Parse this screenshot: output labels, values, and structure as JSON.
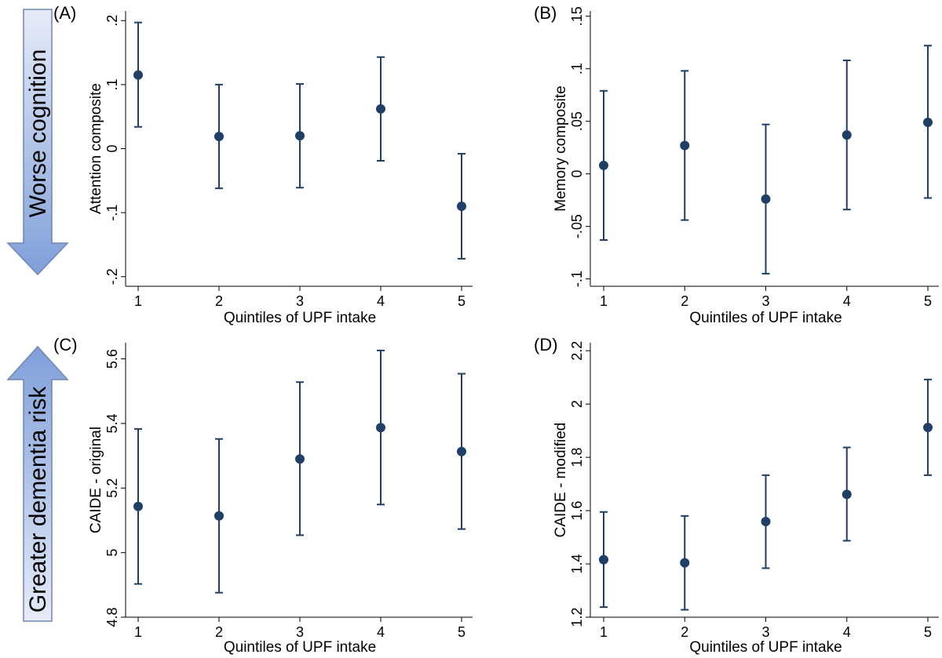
{
  "arrows": [
    {
      "label": "Worse cognition",
      "direction": "down",
      "fill_top": "#e6ecf8",
      "fill_bottom": "#7f9fd9"
    },
    {
      "label": "Greater dementia risk",
      "direction": "up",
      "fill_top": "#7f9fd9",
      "fill_bottom": "#e6ecf8"
    }
  ],
  "colors": {
    "marker": "#1f3f66",
    "errorbar": "#1f3f66",
    "axis": "#000000",
    "background": "#ffffff"
  },
  "chart_data": [
    {
      "type": "scatter",
      "panel_label": "(A)",
      "xlabel": "Quintiles of UPF intake",
      "ylabel": "Attention composite",
      "x": [
        1,
        2,
        3,
        4,
        5
      ],
      "y": [
        0.115,
        0.019,
        0.02,
        0.062,
        -0.09
      ],
      "ci_low": [
        0.034,
        -0.062,
        -0.061,
        -0.019,
        -0.172
      ],
      "ci_high": [
        0.197,
        0.1,
        0.101,
        0.143,
        -0.008
      ],
      "xticks": [
        1,
        2,
        3,
        4,
        5
      ],
      "yticks": [
        -0.2,
        -0.1,
        0,
        0.1,
        0.2
      ],
      "ytick_labels": [
        "-.2",
        "-.1",
        "0",
        ".1",
        ".2"
      ],
      "ylim": [
        -0.215,
        0.215
      ],
      "grid": false,
      "error_bars": true
    },
    {
      "type": "scatter",
      "panel_label": "(B)",
      "xlabel": "Quintiles of UPF intake",
      "ylabel": "Memory composite",
      "x": [
        1,
        2,
        3,
        4,
        5
      ],
      "y": [
        0.008,
        0.027,
        -0.024,
        0.037,
        0.049
      ],
      "ci_low": [
        -0.063,
        -0.044,
        -0.095,
        -0.034,
        -0.023
      ],
      "ci_high": [
        0.079,
        0.098,
        0.047,
        0.108,
        0.122
      ],
      "xticks": [
        1,
        2,
        3,
        4,
        5
      ],
      "yticks": [
        -0.1,
        -0.05,
        0,
        0.05,
        0.1,
        0.15
      ],
      "ytick_labels": [
        "-.1",
        "-.05",
        "0",
        ".05",
        ".1",
        ".15"
      ],
      "ylim": [
        -0.107,
        0.155
      ],
      "grid": false,
      "error_bars": true
    },
    {
      "type": "scatter",
      "panel_label": "(C)",
      "xlabel": "Quintiles of UPF intake",
      "ylabel": "CAIDE - original",
      "x": [
        1,
        2,
        3,
        4,
        5
      ],
      "y": [
        5.143,
        5.114,
        5.29,
        5.387,
        5.313
      ],
      "ci_low": [
        4.903,
        4.876,
        5.054,
        5.149,
        5.073
      ],
      "ci_high": [
        5.383,
        5.352,
        5.528,
        5.626,
        5.554
      ],
      "xticks": [
        1,
        2,
        3,
        4,
        5
      ],
      "yticks": [
        4.8,
        5,
        5.2,
        5.4,
        5.6
      ],
      "ytick_labels": [
        "4.8",
        "5",
        "5.2",
        "5.4",
        "5.6"
      ],
      "ylim": [
        4.8,
        5.65
      ],
      "grid": false,
      "error_bars": true
    },
    {
      "type": "scatter",
      "panel_label": "(D)",
      "xlabel": "Quintiles of UPF intake",
      "ylabel": "CAIDE - modified",
      "x": [
        1,
        2,
        3,
        4,
        5
      ],
      "y": [
        1.416,
        1.404,
        1.559,
        1.661,
        1.912
      ],
      "ci_low": [
        1.238,
        1.228,
        1.384,
        1.487,
        1.733
      ],
      "ci_high": [
        1.595,
        1.58,
        1.733,
        1.837,
        2.092
      ],
      "xticks": [
        1,
        2,
        3,
        4,
        5
      ],
      "yticks": [
        1.2,
        1.4,
        1.6,
        1.8,
        2,
        2.2
      ],
      "ytick_labels": [
        "1.2",
        "1.4",
        "1.6",
        "1.8",
        "2",
        "2.2"
      ],
      "ylim": [
        1.2,
        2.23
      ],
      "grid": false,
      "error_bars": true
    }
  ]
}
